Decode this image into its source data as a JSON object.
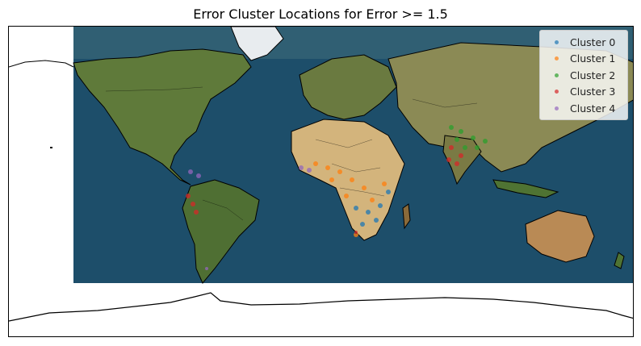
{
  "title": "Error Cluster Locations for Error >= 1.5",
  "legend": {
    "position": "top-right",
    "items": [
      {
        "label": "Cluster 0",
        "color": "#1f77b4"
      },
      {
        "label": "Cluster 1",
        "color": "#ff7f0e"
      },
      {
        "label": "Cluster 2",
        "color": "#2ca02c"
      },
      {
        "label": "Cluster 3",
        "color": "#d62728"
      },
      {
        "label": "Cluster 4",
        "color": "#9467bd"
      }
    ]
  },
  "map": {
    "projection": "plate-carree",
    "basemap": "satellite imagery with coastlines and country borders",
    "ocean_color": "#1d4e6a",
    "land_color": "#6b7a3c",
    "desert_color": "#d8bb8a"
  }
}
